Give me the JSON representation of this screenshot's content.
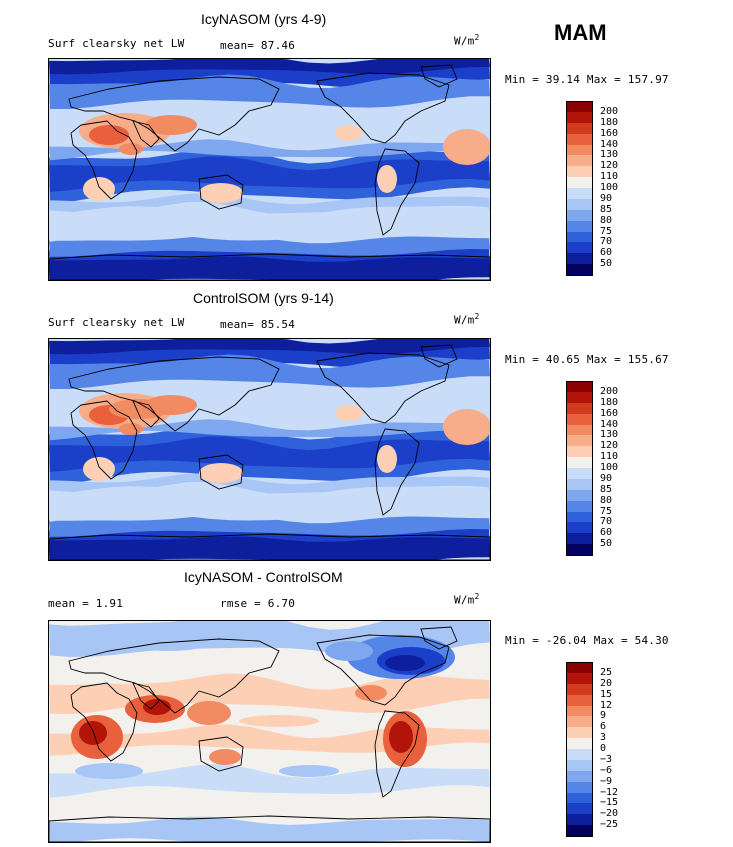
{
  "season": "MAM",
  "panels": [
    {
      "title": "IcyNASOM (yrs 4-9)",
      "left_label": "Surf clearsky net LW",
      "stat1": "mean=  87.46",
      "stat2": "",
      "units": "W/m",
      "units_sup": "2",
      "minmax": "Min =  39.14 Max = 157.97",
      "field": "absolute"
    },
    {
      "title": "ControlSOM (yrs 9-14)",
      "left_label": "Surf clearsky net LW",
      "stat1": "mean=  85.54",
      "stat2": "",
      "units": "W/m",
      "units_sup": "2",
      "minmax": "Min =  40.65 Max = 155.67",
      "field": "absolute"
    },
    {
      "title": "IcyNASOM - ControlSOM",
      "left_label": "mean =   1.91",
      "stat1": "rmse =   6.70",
      "stat2": "",
      "units": "W/m",
      "units_sup": "2",
      "minmax": "Min = -26.04 Max =  54.30",
      "field": "difference"
    }
  ],
  "chart_data": [
    {
      "type": "heatmap",
      "title": "IcyNASOM (yrs 4-9)",
      "variable": "Surf clearsky net LW",
      "units": "W/m2",
      "mean": 87.46,
      "min": 39.14,
      "max": 157.97,
      "levels": [
        "200",
        "180",
        "160",
        "140",
        "130",
        "120",
        "110",
        "100",
        "90",
        "85",
        "80",
        "75",
        "70",
        "60",
        "50"
      ],
      "colors": [
        "#8b0000",
        "#b2140a",
        "#d23a1e",
        "#e8603c",
        "#f28a62",
        "#f8ad8a",
        "#fdd0b6",
        "#f3f1ee",
        "#c9dcf8",
        "#a7c5f5",
        "#7fa7ef",
        "#5585e6",
        "#2f61da",
        "#1b3fc8",
        "#0d1f9c",
        "#04005e"
      ]
    },
    {
      "type": "heatmap",
      "title": "ControlSOM (yrs 9-14)",
      "variable": "Surf clearsky net LW",
      "units": "W/m2",
      "mean": 85.54,
      "min": 40.65,
      "max": 155.67,
      "levels": [
        "200",
        "180",
        "160",
        "140",
        "130",
        "120",
        "110",
        "100",
        "90",
        "85",
        "80",
        "75",
        "70",
        "60",
        "50"
      ],
      "colors": [
        "#8b0000",
        "#b2140a",
        "#d23a1e",
        "#e8603c",
        "#f28a62",
        "#f8ad8a",
        "#fdd0b6",
        "#f3f1ee",
        "#c9dcf8",
        "#a7c5f5",
        "#7fa7ef",
        "#5585e6",
        "#2f61da",
        "#1b3fc8",
        "#0d1f9c",
        "#04005e"
      ]
    },
    {
      "type": "heatmap",
      "title": "IcyNASOM - ControlSOM",
      "units": "W/m2",
      "mean": 1.91,
      "rmse": 6.7,
      "min": -26.04,
      "max": 54.3,
      "levels": [
        "25",
        "20",
        "15",
        "12",
        "9",
        "6",
        "3",
        "0",
        "−3",
        "−6",
        "−9",
        "−12",
        "−15",
        "−20",
        "−25"
      ],
      "colors": [
        "#8b0000",
        "#b2140a",
        "#d23a1e",
        "#e8603c",
        "#f28a62",
        "#f8ad8a",
        "#fdd0b6",
        "#f3f1ee",
        "#c9dcf8",
        "#a7c5f5",
        "#7fa7ef",
        "#5585e6",
        "#2f61da",
        "#1b3fc8",
        "#0d1f9c",
        "#04005e"
      ]
    }
  ]
}
